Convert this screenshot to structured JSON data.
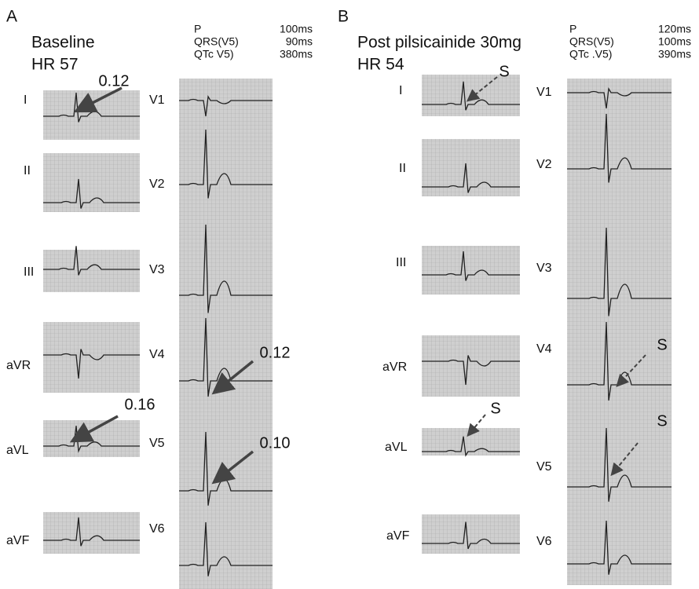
{
  "panel_a": {
    "label": "A",
    "title": "Baseline",
    "heart_rate": "HR 57",
    "measurements": [
      {
        "name": "P",
        "value": "100ms"
      },
      {
        "name": "QRS(V5)",
        "value": "90ms"
      },
      {
        "name": "QTc V5)",
        "value": "380ms"
      }
    ],
    "limb_leads": [
      "I",
      "II",
      "III",
      "aVR",
      "aVL",
      "aVF"
    ],
    "chest_leads": [
      "V1",
      "V2",
      "V3",
      "V4",
      "V5",
      "V6"
    ],
    "annotations": [
      "0.12",
      "0.16",
      "0.12",
      "0.10"
    ]
  },
  "panel_b": {
    "label": "B",
    "title": "Post pilsicainide 30mg",
    "heart_rate": "HR 54",
    "measurements": [
      {
        "name": "P",
        "value": "120ms"
      },
      {
        "name": "QRS(V5)",
        "value": "100ms"
      },
      {
        "name": "QTc .V5)",
        "value": "390ms"
      }
    ],
    "limb_leads": [
      "I",
      "II",
      "III",
      "aVR",
      "aVL",
      "aVF"
    ],
    "chest_leads": [
      "V1",
      "V2",
      "V3",
      "V4",
      "V5",
      "V6"
    ],
    "annotations": [
      "S",
      "S",
      "S",
      "S"
    ]
  }
}
